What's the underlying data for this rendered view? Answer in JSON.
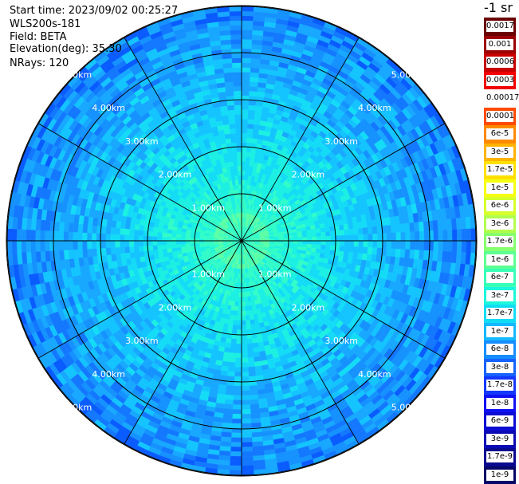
{
  "info": {
    "start_time": "Start time: 2023/09/02 00:25:27",
    "instrument": "WLS200s-181",
    "field": "Field: BETA",
    "elevation": "Elevation(deg): 35.30",
    "nrays": "NRays: 120"
  },
  "rings": [
    {
      "label": "1.00km"
    },
    {
      "label": "2.00km"
    },
    {
      "label": "3.00km"
    },
    {
      "label": "4.00km"
    },
    {
      "label": "5.00km"
    }
  ],
  "colorbar": {
    "unit": "-1 sr",
    "labels": [
      "0.0017",
      "0.001",
      "0.0006",
      "0.0003",
      "0.00017",
      "0.0001",
      "6e-5",
      "3e-5",
      "1.7e-5",
      "1e-5",
      "6e-6",
      "3e-6",
      "1.7e-6",
      "1e-6",
      "6e-7",
      "3e-7",
      "1.7e-7",
      "1e-7",
      "6e-8",
      "3e-8",
      "1.7e-8",
      "1e-8",
      "6e-9",
      "3e-9",
      "1.7e-9",
      "1e-9"
    ],
    "colors": [
      "#6a0000",
      "#9c0000",
      "#c80000",
      "#f20000",
      "#ffffff",
      "#ff4a00",
      "#ff8a00",
      "#ffb400",
      "#ffe000",
      "#f6ff12",
      "#d6ff2c",
      "#b0ff4e",
      "#86ff6c",
      "#5cff92",
      "#38ffb8",
      "#1cf7de",
      "#12dcf4",
      "#14b8ff",
      "#168eff",
      "#1662ff",
      "#1438ff",
      "#1010f4",
      "#0c0cd4",
      "#0a0ab4",
      "#080890",
      "#060668"
    ]
  }
}
